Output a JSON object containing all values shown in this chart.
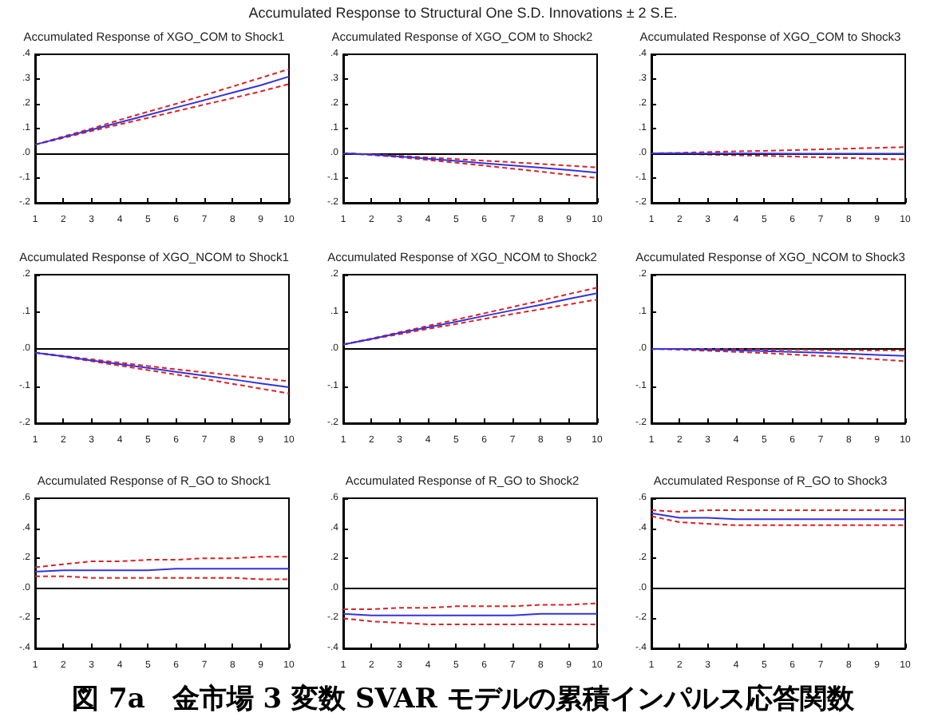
{
  "chart_data": [
    {
      "type": "line",
      "title": "Accumulated Response of XGO_COM to Shock1",
      "annotations": [
        "Accumulated Response to Structural One S.D. Innovations ± 2 S.E."
      ],
      "categories": [
        "1",
        "2",
        "3",
        "4",
        "5",
        "6",
        "7",
        "8",
        "9",
        "10"
      ],
      "ylim": [
        -0.2,
        0.4
      ],
      "yticks": [
        {
          "value": -0.2,
          "label": "-.2"
        },
        {
          "value": -0.1,
          "label": "-.1"
        },
        {
          "value": 0,
          "label": ".0"
        },
        {
          "value": 0.1,
          "label": ".1"
        },
        {
          "value": 0.2,
          "label": ".2"
        },
        {
          "value": 0.3,
          "label": ".3"
        },
        {
          "value": 0.4,
          "label": ".4"
        }
      ],
      "grid": false,
      "marker": "none",
      "ref_lines": [
        {
          "axis": "y",
          "value": 0,
          "color": "#000000"
        }
      ],
      "series": [
        {
          "color": "#3333dd",
          "line_style": "solid",
          "values": [
            0.035,
            0.065,
            0.095,
            0.125,
            0.155,
            0.185,
            0.215,
            0.245,
            0.275,
            0.31
          ]
        },
        {
          "color": "#dd2222",
          "line_style": "dashed",
          "values": [
            0.035,
            0.068,
            0.1,
            0.135,
            0.168,
            0.2,
            0.235,
            0.27,
            0.305,
            0.34
          ]
        },
        {
          "color": "#dd2222",
          "line_style": "dashed",
          "values": [
            0.035,
            0.062,
            0.09,
            0.117,
            0.143,
            0.17,
            0.197,
            0.223,
            0.25,
            0.28
          ]
        }
      ]
    },
    {
      "type": "line",
      "title": "Accumulated Response of XGO_COM to Shock2",
      "categories": [
        "1",
        "2",
        "3",
        "4",
        "5",
        "6",
        "7",
        "8",
        "9",
        "10"
      ],
      "ylim": [
        -0.2,
        0.4
      ],
      "yticks": [
        {
          "value": -0.2,
          "label": "-.2"
        },
        {
          "value": -0.1,
          "label": "-.1"
        },
        {
          "value": 0,
          "label": ".0"
        },
        {
          "value": 0.1,
          "label": ".1"
        },
        {
          "value": 0.2,
          "label": ".2"
        },
        {
          "value": 0.3,
          "label": ".3"
        },
        {
          "value": 0.4,
          "label": ".4"
        }
      ],
      "grid": false,
      "marker": "none",
      "ref_lines": [
        {
          "axis": "y",
          "value": 0,
          "color": "#000000"
        }
      ],
      "series": [
        {
          "color": "#3333dd",
          "line_style": "solid",
          "values": [
            0,
            -0.005,
            -0.013,
            -0.022,
            -0.031,
            -0.04,
            -0.049,
            -0.058,
            -0.068,
            -0.078
          ]
        },
        {
          "color": "#dd2222",
          "line_style": "dashed",
          "values": [
            0,
            -0.004,
            -0.01,
            -0.017,
            -0.023,
            -0.03,
            -0.036,
            -0.043,
            -0.05,
            -0.057
          ]
        },
        {
          "color": "#dd2222",
          "line_style": "dashed",
          "values": [
            0,
            -0.007,
            -0.016,
            -0.027,
            -0.038,
            -0.05,
            -0.062,
            -0.074,
            -0.087,
            -0.1
          ]
        }
      ]
    },
    {
      "type": "line",
      "title": "Accumulated Response of XGO_COM to Shock3",
      "categories": [
        "1",
        "2",
        "3",
        "4",
        "5",
        "6",
        "7",
        "8",
        "9",
        "10"
      ],
      "ylim": [
        -0.2,
        0.4
      ],
      "yticks": [
        {
          "value": -0.2,
          "label": "-.2"
        },
        {
          "value": -0.1,
          "label": "-.1"
        },
        {
          "value": 0,
          "label": ".0"
        },
        {
          "value": 0.1,
          "label": ".1"
        },
        {
          "value": 0.2,
          "label": ".2"
        },
        {
          "value": 0.3,
          "label": ".3"
        },
        {
          "value": 0.4,
          "label": ".4"
        }
      ],
      "grid": false,
      "marker": "none",
      "ref_lines": [
        {
          "axis": "y",
          "value": 0,
          "color": "#000000"
        }
      ],
      "series": [
        {
          "color": "#3333dd",
          "line_style": "solid",
          "values": [
            0,
            0,
            -0.001,
            -0.001,
            -0.001,
            -0.002,
            -0.002,
            -0.002,
            -0.002,
            -0.002
          ]
        },
        {
          "color": "#dd2222",
          "line_style": "dashed",
          "values": [
            0,
            0.002,
            0.005,
            0.008,
            0.01,
            0.013,
            0.016,
            0.019,
            0.022,
            0.025
          ]
        },
        {
          "color": "#dd2222",
          "line_style": "dashed",
          "values": [
            0,
            -0.002,
            -0.005,
            -0.008,
            -0.01,
            -0.013,
            -0.016,
            -0.019,
            -0.022,
            -0.025
          ]
        }
      ]
    },
    {
      "type": "line",
      "title": "Accumulated Response of XGO_NCOM to Shock1",
      "categories": [
        "1",
        "2",
        "3",
        "4",
        "5",
        "6",
        "7",
        "8",
        "9",
        "10"
      ],
      "ylim": [
        -0.2,
        0.2
      ],
      "yticks": [
        {
          "value": -0.2,
          "label": "-.2"
        },
        {
          "value": -0.1,
          "label": "-.1"
        },
        {
          "value": 0,
          "label": ".0"
        },
        {
          "value": 0.1,
          "label": ".1"
        },
        {
          "value": 0.2,
          "label": ".2"
        }
      ],
      "grid": false,
      "marker": "none",
      "ref_lines": [
        {
          "axis": "y",
          "value": 0,
          "color": "#000000"
        }
      ],
      "series": [
        {
          "color": "#3333dd",
          "line_style": "solid",
          "values": [
            -0.01,
            -0.02,
            -0.031,
            -0.041,
            -0.051,
            -0.062,
            -0.072,
            -0.082,
            -0.093,
            -0.103
          ]
        },
        {
          "color": "#dd2222",
          "line_style": "dashed",
          "values": [
            -0.01,
            -0.019,
            -0.028,
            -0.037,
            -0.046,
            -0.055,
            -0.063,
            -0.071,
            -0.079,
            -0.087
          ]
        },
        {
          "color": "#dd2222",
          "line_style": "dashed",
          "values": [
            -0.01,
            -0.021,
            -0.033,
            -0.045,
            -0.057,
            -0.069,
            -0.081,
            -0.094,
            -0.107,
            -0.12
          ]
        }
      ]
    },
    {
      "type": "line",
      "title": "Accumulated Response of XGO_NCOM to Shock2",
      "categories": [
        "1",
        "2",
        "3",
        "4",
        "5",
        "6",
        "7",
        "8",
        "9",
        "10"
      ],
      "ylim": [
        -0.2,
        0.2
      ],
      "yticks": [
        {
          "value": -0.2,
          "label": "-.2"
        },
        {
          "value": -0.1,
          "label": "-.1"
        },
        {
          "value": 0,
          "label": ".0"
        },
        {
          "value": 0.1,
          "label": ".1"
        },
        {
          "value": 0.2,
          "label": ".2"
        }
      ],
      "grid": false,
      "marker": "none",
      "ref_lines": [
        {
          "axis": "y",
          "value": 0,
          "color": "#000000"
        }
      ],
      "series": [
        {
          "color": "#3333dd",
          "line_style": "solid",
          "values": [
            0.012,
            0.027,
            0.043,
            0.058,
            0.073,
            0.089,
            0.104,
            0.119,
            0.135,
            0.15
          ]
        },
        {
          "color": "#dd2222",
          "line_style": "dashed",
          "values": [
            0.012,
            0.028,
            0.045,
            0.062,
            0.079,
            0.096,
            0.113,
            0.13,
            0.148,
            0.165
          ]
        },
        {
          "color": "#dd2222",
          "line_style": "dashed",
          "values": [
            0.012,
            0.026,
            0.04,
            0.054,
            0.067,
            0.081,
            0.094,
            0.107,
            0.12,
            0.133
          ]
        }
      ]
    },
    {
      "type": "line",
      "title": "Accumulated Response of XGO_NCOM to Shock3",
      "categories": [
        "1",
        "2",
        "3",
        "4",
        "5",
        "6",
        "7",
        "8",
        "9",
        "10"
      ],
      "ylim": [
        -0.2,
        0.2
      ],
      "yticks": [
        {
          "value": -0.2,
          "label": "-.2"
        },
        {
          "value": -0.1,
          "label": "-.1"
        },
        {
          "value": 0,
          "label": ".0"
        },
        {
          "value": 0.1,
          "label": ".1"
        },
        {
          "value": 0.2,
          "label": ".2"
        }
      ],
      "grid": false,
      "marker": "none",
      "ref_lines": [
        {
          "axis": "y",
          "value": 0,
          "color": "#000000"
        }
      ],
      "series": [
        {
          "color": "#3333dd",
          "line_style": "solid",
          "values": [
            0,
            0,
            -0.002,
            -0.004,
            -0.006,
            -0.008,
            -0.01,
            -0.013,
            -0.016,
            -0.019
          ]
        },
        {
          "color": "#dd2222",
          "line_style": "dashed",
          "values": [
            0,
            0,
            0,
            -0.001,
            -0.002,
            -0.002,
            -0.003,
            -0.003,
            -0.004,
            -0.004
          ]
        },
        {
          "color": "#dd2222",
          "line_style": "dashed",
          "values": [
            0,
            -0.002,
            -0.005,
            -0.008,
            -0.011,
            -0.015,
            -0.019,
            -0.023,
            -0.028,
            -0.033
          ]
        }
      ]
    },
    {
      "type": "line",
      "title": "Accumulated Response of R_GO to Shock1",
      "categories": [
        "1",
        "2",
        "3",
        "4",
        "5",
        "6",
        "7",
        "8",
        "9",
        "10"
      ],
      "ylim": [
        -0.4,
        0.6
      ],
      "yticks": [
        {
          "value": -0.4,
          "label": "-.4"
        },
        {
          "value": -0.2,
          "label": "-.2"
        },
        {
          "value": 0,
          "label": ".0"
        },
        {
          "value": 0.2,
          "label": ".2"
        },
        {
          "value": 0.4,
          "label": ".4"
        },
        {
          "value": 0.6,
          "label": ".6"
        }
      ],
      "grid": false,
      "marker": "none",
      "ref_lines": [
        {
          "axis": "y",
          "value": 0,
          "color": "#000000"
        }
      ],
      "series": [
        {
          "color": "#3333dd",
          "line_style": "solid",
          "values": [
            0.11,
            0.12,
            0.12,
            0.12,
            0.12,
            0.13,
            0.13,
            0.13,
            0.13,
            0.13
          ]
        },
        {
          "color": "#dd2222",
          "line_style": "dashed",
          "values": [
            0.14,
            0.16,
            0.18,
            0.18,
            0.19,
            0.19,
            0.2,
            0.2,
            0.21,
            0.21
          ]
        },
        {
          "color": "#dd2222",
          "line_style": "dashed",
          "values": [
            0.08,
            0.08,
            0.07,
            0.07,
            0.07,
            0.07,
            0.07,
            0.07,
            0.06,
            0.06
          ]
        }
      ]
    },
    {
      "type": "line",
      "title": "Accumulated Response of R_GO to Shock2",
      "categories": [
        "1",
        "2",
        "3",
        "4",
        "5",
        "6",
        "7",
        "8",
        "9",
        "10"
      ],
      "ylim": [
        -0.4,
        0.6
      ],
      "yticks": [
        {
          "value": -0.4,
          "label": "-.4"
        },
        {
          "value": -0.2,
          "label": "-.2"
        },
        {
          "value": 0,
          "label": ".0"
        },
        {
          "value": 0.2,
          "label": ".2"
        },
        {
          "value": 0.4,
          "label": ".4"
        },
        {
          "value": 0.6,
          "label": ".6"
        }
      ],
      "grid": false,
      "marker": "none",
      "ref_lines": [
        {
          "axis": "y",
          "value": 0,
          "color": "#000000"
        }
      ],
      "series": [
        {
          "color": "#3333dd",
          "line_style": "solid",
          "values": [
            -0.17,
            -0.18,
            -0.18,
            -0.18,
            -0.18,
            -0.18,
            -0.18,
            -0.17,
            -0.17,
            -0.17
          ]
        },
        {
          "color": "#dd2222",
          "line_style": "dashed",
          "values": [
            -0.14,
            -0.14,
            -0.13,
            -0.13,
            -0.12,
            -0.12,
            -0.12,
            -0.11,
            -0.11,
            -0.1
          ]
        },
        {
          "color": "#dd2222",
          "line_style": "dashed",
          "values": [
            -0.2,
            -0.22,
            -0.23,
            -0.24,
            -0.24,
            -0.24,
            -0.24,
            -0.24,
            -0.24,
            -0.24
          ]
        }
      ]
    },
    {
      "type": "line",
      "title": "Accumulated Response of R_GO to Shock3",
      "annotations": [
        "図 7a　金市場 3 変数 SVAR モデルの累積インパルス応答関数"
      ],
      "categories": [
        "1",
        "2",
        "3",
        "4",
        "5",
        "6",
        "7",
        "8",
        "9",
        "10"
      ],
      "ylim": [
        -0.4,
        0.6
      ],
      "yticks": [
        {
          "value": -0.4,
          "label": "-.4"
        },
        {
          "value": -0.2,
          "label": "-.2"
        },
        {
          "value": 0,
          "label": ".0"
        },
        {
          "value": 0.2,
          "label": ".2"
        },
        {
          "value": 0.4,
          "label": ".4"
        },
        {
          "value": 0.6,
          "label": ".6"
        }
      ],
      "grid": false,
      "marker": "none",
      "ref_lines": [
        {
          "axis": "y",
          "value": 0,
          "color": "#000000"
        }
      ],
      "series": [
        {
          "color": "#3333dd",
          "line_style": "solid",
          "values": [
            0.5,
            0.47,
            0.47,
            0.46,
            0.46,
            0.46,
            0.46,
            0.46,
            0.46,
            0.46
          ]
        },
        {
          "color": "#dd2222",
          "line_style": "dashed",
          "values": [
            0.52,
            0.51,
            0.52,
            0.52,
            0.52,
            0.52,
            0.52,
            0.52,
            0.52,
            0.52
          ]
        },
        {
          "color": "#dd2222",
          "line_style": "dashed",
          "values": [
            0.48,
            0.44,
            0.43,
            0.42,
            0.42,
            0.42,
            0.42,
            0.42,
            0.42,
            0.42
          ]
        }
      ]
    }
  ]
}
